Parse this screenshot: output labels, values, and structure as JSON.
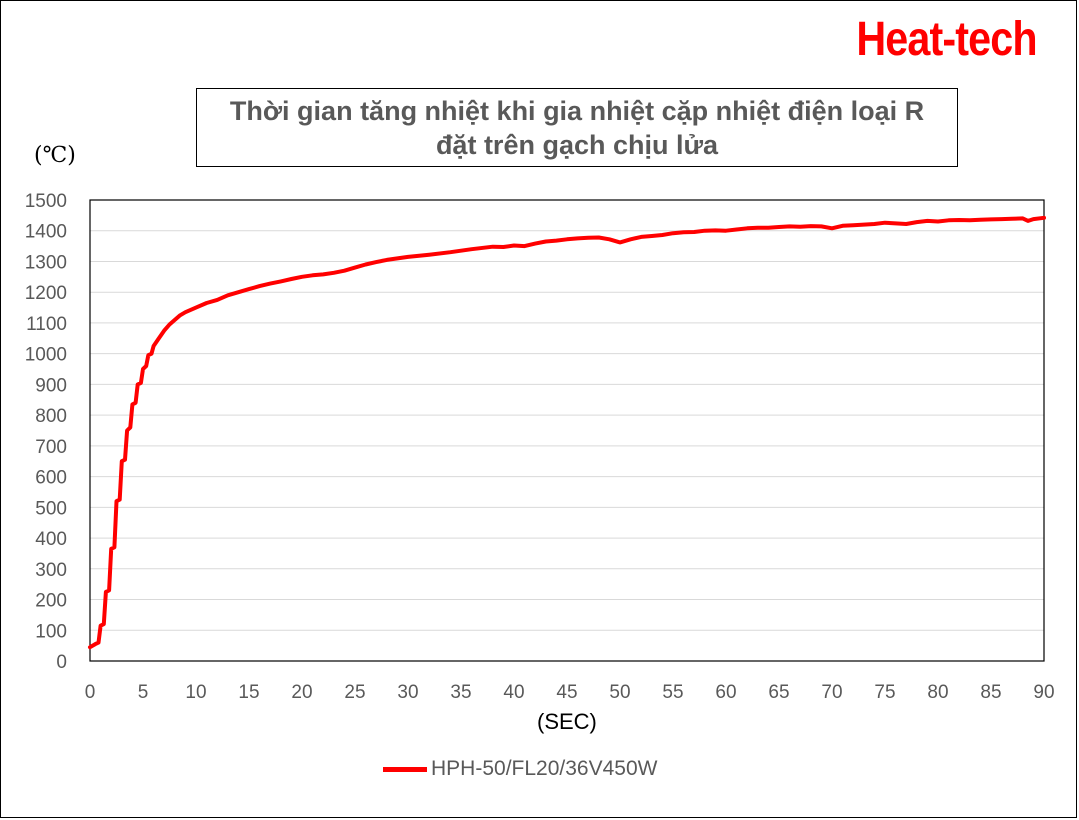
{
  "brand": {
    "text": "Heat-tech",
    "color": "#ff0000"
  },
  "chart_data": {
    "type": "line",
    "title": "Thời gian tăng nhiệt khi gia nhiệt cặp nhiệt điện loại R\nđặt trên gạch chịu lửa",
    "title_lines": [
      "Thời gian tăng nhiệt khi gia nhiệt cặp nhiệt điện loại R",
      "đặt trên gạch chịu lửa"
    ],
    "ylabel": "(℃)",
    "xlabel": "(SEC)",
    "xlim": [
      0,
      90
    ],
    "ylim": [
      0,
      1500
    ],
    "xticks": [
      0,
      5,
      10,
      15,
      20,
      25,
      30,
      35,
      40,
      45,
      50,
      55,
      60,
      65,
      70,
      75,
      80,
      85,
      90
    ],
    "yticks": [
      0,
      100,
      200,
      300,
      400,
      500,
      600,
      700,
      800,
      900,
      1000,
      1100,
      1200,
      1300,
      1400,
      1500
    ],
    "grid": "horizontal",
    "legend_position": "bottom",
    "series": [
      {
        "name": "HPH-50/FL20/36V450W",
        "color": "#ff0000",
        "points": [
          [
            0,
            45
          ],
          [
            0.5,
            55
          ],
          [
            0.8,
            60
          ],
          [
            1.0,
            115
          ],
          [
            1.3,
            120
          ],
          [
            1.5,
            225
          ],
          [
            1.8,
            230
          ],
          [
            2.0,
            365
          ],
          [
            2.3,
            370
          ],
          [
            2.5,
            520
          ],
          [
            2.8,
            525
          ],
          [
            3.0,
            650
          ],
          [
            3.3,
            655
          ],
          [
            3.5,
            750
          ],
          [
            3.8,
            760
          ],
          [
            4.0,
            835
          ],
          [
            4.3,
            840
          ],
          [
            4.5,
            900
          ],
          [
            4.8,
            905
          ],
          [
            5.0,
            950
          ],
          [
            5.3,
            960
          ],
          [
            5.5,
            995
          ],
          [
            5.8,
            1000
          ],
          [
            6.0,
            1025
          ],
          [
            6.5,
            1050
          ],
          [
            7.0,
            1075
          ],
          [
            7.5,
            1095
          ],
          [
            8.0,
            1110
          ],
          [
            8.5,
            1125
          ],
          [
            9,
            1135
          ],
          [
            10,
            1150
          ],
          [
            11,
            1165
          ],
          [
            12,
            1175
          ],
          [
            13,
            1190
          ],
          [
            14,
            1200
          ],
          [
            15,
            1210
          ],
          [
            16,
            1220
          ],
          [
            17,
            1228
          ],
          [
            18,
            1235
          ],
          [
            19,
            1243
          ],
          [
            20,
            1250
          ],
          [
            21,
            1255
          ],
          [
            22,
            1258
          ],
          [
            23,
            1263
          ],
          [
            24,
            1270
          ],
          [
            25,
            1280
          ],
          [
            26,
            1290
          ],
          [
            27,
            1298
          ],
          [
            28,
            1305
          ],
          [
            29,
            1310
          ],
          [
            30,
            1315
          ],
          [
            32,
            1322
          ],
          [
            34,
            1330
          ],
          [
            36,
            1340
          ],
          [
            38,
            1348
          ],
          [
            39,
            1347
          ],
          [
            40,
            1352
          ],
          [
            41,
            1350
          ],
          [
            42,
            1358
          ],
          [
            43,
            1365
          ],
          [
            44,
            1368
          ],
          [
            45,
            1372
          ],
          [
            46,
            1375
          ],
          [
            47,
            1377
          ],
          [
            48,
            1378
          ],
          [
            49,
            1372
          ],
          [
            50,
            1362
          ],
          [
            51,
            1372
          ],
          [
            52,
            1380
          ],
          [
            53,
            1383
          ],
          [
            54,
            1386
          ],
          [
            55,
            1392
          ],
          [
            56,
            1395
          ],
          [
            57,
            1396
          ],
          [
            58,
            1400
          ],
          [
            59,
            1401
          ],
          [
            60,
            1400
          ],
          [
            61,
            1404
          ],
          [
            62,
            1408
          ],
          [
            63,
            1410
          ],
          [
            64,
            1410
          ],
          [
            65,
            1412
          ],
          [
            66,
            1414
          ],
          [
            67,
            1413
          ],
          [
            68,
            1415
          ],
          [
            69,
            1414
          ],
          [
            70,
            1408
          ],
          [
            71,
            1416
          ],
          [
            72,
            1418
          ],
          [
            73,
            1420
          ],
          [
            74,
            1422
          ],
          [
            75,
            1426
          ],
          [
            76,
            1424
          ],
          [
            77,
            1422
          ],
          [
            78,
            1428
          ],
          [
            79,
            1432
          ],
          [
            80,
            1430
          ],
          [
            81,
            1434
          ],
          [
            82,
            1435
          ],
          [
            83,
            1434
          ],
          [
            84,
            1436
          ],
          [
            85,
            1437
          ],
          [
            86,
            1438
          ],
          [
            87,
            1439
          ],
          [
            88,
            1440
          ],
          [
            88.5,
            1432
          ],
          [
            89,
            1438
          ],
          [
            90,
            1442
          ]
        ]
      }
    ]
  }
}
